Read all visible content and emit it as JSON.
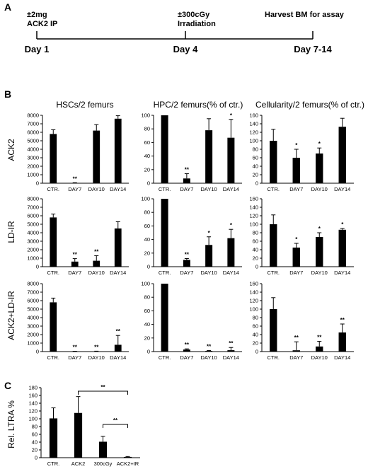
{
  "panels": {
    "a": "A",
    "b": "B",
    "c": "C"
  },
  "timeline": {
    "events": [
      {
        "label": "Day 1",
        "top1": "±2mg",
        "top2": "ACK2 IP"
      },
      {
        "label": "Day 4",
        "top1": "±300cGy",
        "top2": "Irradiation"
      },
      {
        "label": "Day 7-14",
        "top1": "Harvest BM for assay",
        "top2": ""
      }
    ]
  },
  "column_titles": [
    "HSCs/2 femurs",
    "HPC/2 femurs(% of ctr.)",
    "Cellularity/2 femurs(% of ctr.)"
  ],
  "row_labels": [
    "ACK2",
    "LD-IR",
    "ACK2+LD-IR"
  ],
  "chart_data": [
    {
      "id": "b-ack2-hsc",
      "type": "bar",
      "categories": [
        "CTR.",
        "DAY7",
        "DAY10",
        "DAY14"
      ],
      "values": [
        5800,
        30,
        6200,
        7600
      ],
      "errors": [
        500,
        30,
        700,
        350
      ],
      "sig": [
        "",
        "**",
        "",
        ""
      ],
      "ylim": [
        0,
        8000
      ],
      "yticks": [
        0,
        1000,
        2000,
        3000,
        4000,
        5000,
        6000,
        7000,
        8000
      ]
    },
    {
      "id": "b-ack2-hpc",
      "type": "bar",
      "categories": [
        "CTR.",
        "DAY7",
        "DAY10",
        "DAY14"
      ],
      "values": [
        100,
        7,
        78,
        67
      ],
      "errors": [
        0,
        7,
        17,
        27
      ],
      "sig": [
        "",
        "**",
        "",
        "*"
      ],
      "ylim": [
        0,
        100
      ],
      "yticks": [
        0,
        20,
        40,
        60,
        80,
        100
      ]
    },
    {
      "id": "b-ack2-cell",
      "type": "bar",
      "categories": [
        "CTR.",
        "DAY7",
        "DAY10",
        "DAY14"
      ],
      "values": [
        100,
        60,
        70,
        133
      ],
      "errors": [
        27,
        20,
        13,
        20
      ],
      "sig": [
        "",
        "*",
        "*",
        ""
      ],
      "ylim": [
        0,
        160
      ],
      "yticks": [
        0,
        20,
        40,
        60,
        80,
        100,
        120,
        140,
        160
      ]
    },
    {
      "id": "b-ldir-hsc",
      "type": "bar",
      "categories": [
        "CTR.",
        "DAY7",
        "DAY10",
        "DAY14"
      ],
      "values": [
        5800,
        600,
        700,
        4500
      ],
      "errors": [
        400,
        350,
        600,
        800
      ],
      "sig": [
        "",
        "**",
        "**",
        ""
      ],
      "ylim": [
        0,
        8000
      ],
      "yticks": [
        0,
        1000,
        2000,
        3000,
        4000,
        5000,
        6000,
        7000,
        8000
      ]
    },
    {
      "id": "b-ldir-hpc",
      "type": "bar",
      "categories": [
        "CTR.",
        "DAY7",
        "DAY10",
        "DAY14"
      ],
      "values": [
        100,
        10,
        32,
        42
      ],
      "errors": [
        0,
        2,
        12,
        13
      ],
      "sig": [
        "",
        "**",
        "*",
        "*"
      ],
      "ylim": [
        0,
        100
      ],
      "yticks": [
        0,
        20,
        40,
        60,
        80,
        100
      ]
    },
    {
      "id": "b-ldir-cell",
      "type": "bar",
      "categories": [
        "CTR.",
        "DAY7",
        "DAY10",
        "DAY14"
      ],
      "values": [
        100,
        45,
        70,
        87
      ],
      "errors": [
        22,
        10,
        10,
        3
      ],
      "sig": [
        "",
        "*",
        "*",
        "*"
      ],
      "ylim": [
        0,
        160
      ],
      "yticks": [
        0,
        20,
        40,
        60,
        80,
        100,
        120,
        140,
        160
      ]
    },
    {
      "id": "b-combo-hsc",
      "type": "bar",
      "categories": [
        "CTR.",
        "DAY7",
        "DAY10",
        "DAY14"
      ],
      "values": [
        5800,
        20,
        30,
        800
      ],
      "errors": [
        500,
        20,
        20,
        1100
      ],
      "sig": [
        "",
        "**",
        "**",
        "**"
      ],
      "ylim": [
        0,
        8000
      ],
      "yticks": [
        0,
        1000,
        2000,
        3000,
        4000,
        5000,
        6000,
        7000,
        8000
      ]
    },
    {
      "id": "b-combo-hpc",
      "type": "bar",
      "categories": [
        "CTR.",
        "DAY7",
        "DAY10",
        "DAY14"
      ],
      "values": [
        100,
        3,
        1,
        2
      ],
      "errors": [
        0,
        1,
        0.5,
        4
      ],
      "sig": [
        "",
        "**",
        "**",
        "**"
      ],
      "ylim": [
        0,
        100
      ],
      "yticks": [
        0,
        20,
        40,
        60,
        80,
        100
      ]
    },
    {
      "id": "b-combo-cell",
      "type": "bar",
      "categories": [
        "CTR.",
        "DAY7",
        "DAY10",
        "DAY14"
      ],
      "values": [
        100,
        3,
        12,
        45
      ],
      "errors": [
        27,
        20,
        12,
        20
      ],
      "sig": [
        "",
        "**",
        "**",
        "**"
      ],
      "ylim": [
        0,
        160
      ],
      "yticks": [
        0,
        20,
        40,
        60,
        80,
        100,
        120,
        140,
        160
      ]
    },
    {
      "id": "c-ltra",
      "type": "bar",
      "categories": [
        "CTR.",
        "ACK2",
        "300cGy",
        "ACK2+IR"
      ],
      "values": [
        101,
        115,
        41,
        2
      ],
      "errors": [
        27,
        42,
        14,
        1
      ],
      "sig": [
        "",
        "",
        "",
        ""
      ],
      "ylim": [
        0,
        180
      ],
      "yticks": [
        0,
        20,
        40,
        60,
        80,
        100,
        120,
        140,
        160,
        180
      ],
      "ylabel": "Rel. LTRA %",
      "comparisons": [
        {
          "from": 1,
          "to": 3,
          "label": "**"
        },
        {
          "from": 2,
          "to": 3,
          "label": "**"
        }
      ]
    }
  ]
}
